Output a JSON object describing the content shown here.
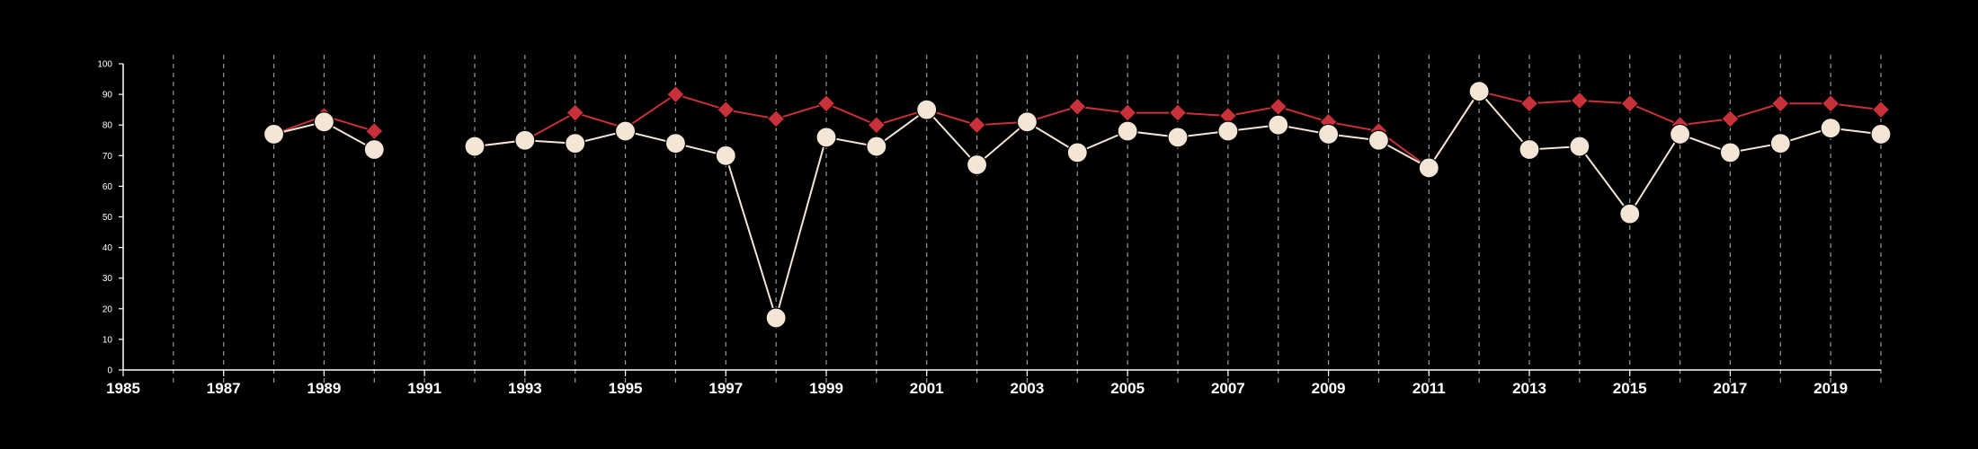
{
  "chart_data": {
    "type": "line",
    "title": "",
    "xlabel": "",
    "ylabel": "",
    "xlim": [
      1985,
      2020
    ],
    "ylim": [
      0,
      100
    ],
    "x_ticks": [
      1985,
      1987,
      1989,
      1991,
      1993,
      1995,
      1997,
      1999,
      2001,
      2003,
      2005,
      2007,
      2009,
      2011,
      2013,
      2015,
      2017,
      2019
    ],
    "y_ticks": [
      0,
      10,
      20,
      30,
      40,
      50,
      60,
      70,
      80,
      90,
      100
    ],
    "grid": "vertical dashed lines at every year",
    "legend": "none",
    "series": [
      {
        "marker": "diamond",
        "color": "#c8303a",
        "points": [
          [
            1988,
            77
          ],
          [
            1989,
            83
          ],
          [
            1990,
            78
          ],
          [
            1992,
            73
          ],
          [
            1993,
            75
          ],
          [
            1994,
            84
          ],
          [
            1995,
            79
          ],
          [
            1996,
            90
          ],
          [
            1997,
            85
          ],
          [
            1998,
            82
          ],
          [
            1999,
            87
          ],
          [
            2000,
            80
          ],
          [
            2001,
            85
          ],
          [
            2002,
            80
          ],
          [
            2003,
            81
          ],
          [
            2004,
            86
          ],
          [
            2005,
            84
          ],
          [
            2006,
            84
          ],
          [
            2007,
            83
          ],
          [
            2008,
            86
          ],
          [
            2009,
            81
          ],
          [
            2010,
            78
          ],
          [
            2011,
            66
          ],
          [
            2012,
            91
          ],
          [
            2013,
            87
          ],
          [
            2014,
            88
          ],
          [
            2015,
            87
          ],
          [
            2016,
            80
          ],
          [
            2017,
            82
          ],
          [
            2018,
            87
          ],
          [
            2019,
            87
          ],
          [
            2020,
            85
          ]
        ]
      },
      {
        "marker": "circle",
        "color": "#f4e6d6",
        "points": [
          [
            1988,
            77
          ],
          [
            1989,
            81
          ],
          [
            1990,
            72
          ],
          [
            1992,
            73
          ],
          [
            1993,
            75
          ],
          [
            1994,
            74
          ],
          [
            1995,
            78
          ],
          [
            1996,
            74
          ],
          [
            1997,
            70
          ],
          [
            1998,
            17
          ],
          [
            1999,
            76
          ],
          [
            2000,
            73
          ],
          [
            2001,
            85
          ],
          [
            2002,
            67
          ],
          [
            2003,
            81
          ],
          [
            2004,
            71
          ],
          [
            2005,
            78
          ],
          [
            2006,
            76
          ],
          [
            2007,
            78
          ],
          [
            2008,
            80
          ],
          [
            2009,
            77
          ],
          [
            2010,
            75
          ],
          [
            2011,
            66
          ],
          [
            2012,
            91
          ],
          [
            2013,
            72
          ],
          [
            2014,
            73
          ],
          [
            2015,
            51
          ],
          [
            2016,
            77
          ],
          [
            2017,
            71
          ],
          [
            2018,
            74
          ],
          [
            2019,
            79
          ],
          [
            2020,
            77
          ]
        ]
      }
    ]
  }
}
